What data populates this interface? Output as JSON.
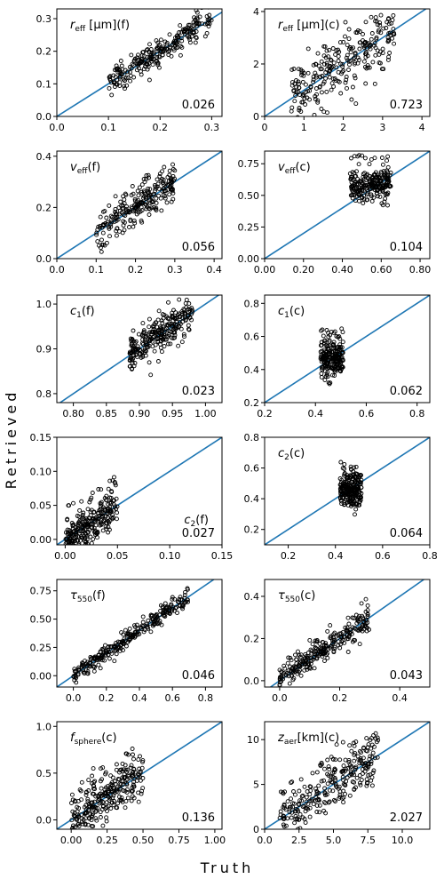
{
  "figure": {
    "ylabel": "Retrieved",
    "xlabel": "Truth",
    "colors": {
      "one_to_one": "#1f77b4",
      "marker": "#000000",
      "axes": "#000000"
    }
  },
  "chart_data": [
    {
      "type": "scatter",
      "title_main": "r",
      "title_sub": "eff",
      "title_rest": " [μm](f)",
      "rmse": "0.026",
      "xlim": [
        0,
        0.32
      ],
      "ylim": [
        0,
        0.33
      ],
      "xticks": [
        0.0,
        0.1,
        0.2,
        0.3
      ],
      "yticks": [
        0.0,
        0.1,
        0.2,
        0.3
      ],
      "dec": 1,
      "cloud": {
        "truth_range": [
          0.1,
          0.3
        ],
        "spread": 0.02,
        "outlier_frac": 0.08,
        "outlier_spread": 0.05,
        "n": 260
      }
    },
    {
      "type": "scatter",
      "title_main": "r",
      "title_sub": "eff",
      "title_rest": " [μm](c)",
      "rmse": "0.723",
      "xlim": [
        0,
        4.2
      ],
      "ylim": [
        0,
        4.1
      ],
      "xticks": [
        0,
        1,
        2,
        3,
        4
      ],
      "yticks": [
        0,
        2,
        4
      ],
      "dec": 0,
      "cloud": {
        "truth_range": [
          0.65,
          3.3
        ],
        "spread": 0.55,
        "outlier_frac": 0.1,
        "outlier_spread": 1.0,
        "n": 260
      }
    },
    {
      "type": "scatter",
      "title_main": "v",
      "title_sub": "eff",
      "title_rest": "(f)",
      "rmse": "0.056",
      "xlim": [
        0,
        0.42
      ],
      "ylim": [
        0,
        0.42
      ],
      "xticks": [
        0.0,
        0.1,
        0.2,
        0.3,
        0.4
      ],
      "yticks": [
        0.0,
        0.2,
        0.4
      ],
      "dec": 1,
      "cloud": {
        "truth_range": [
          0.1,
          0.3
        ],
        "spread": 0.035,
        "outlier_frac": 0.1,
        "outlier_spread": 0.09,
        "n": 240
      }
    },
    {
      "type": "scatter",
      "title_main": "v",
      "title_sub": "eff",
      "title_rest": "(c)",
      "rmse": "0.104",
      "xlim": [
        0,
        0.85
      ],
      "ylim": [
        0,
        0.85
      ],
      "xticks": [
        0.0,
        0.2,
        0.4,
        0.6,
        0.8
      ],
      "yticks": [
        0.0,
        0.25,
        0.5,
        0.75
      ],
      "dec": 2,
      "cloud": {
        "truth_range": [
          0.44,
          0.65
        ],
        "spread": 0.06,
        "outlier_frac": 0.18,
        "outlier_spread": 0.2,
        "n": 230,
        "flat_y": 0.58
      }
    },
    {
      "type": "scatter",
      "title_main": "c",
      "title_sub": "1",
      "title_rest": "(f)",
      "rmse": "0.023",
      "xlim": [
        0.775,
        1.025
      ],
      "ylim": [
        0.78,
        1.02
      ],
      "xticks": [
        0.8,
        0.85,
        0.9,
        0.95,
        1.0
      ],
      "yticks": [
        0.8,
        0.9,
        1.0
      ],
      "dec": 2,
      "ydec": 1,
      "cloud": {
        "truth_range": [
          0.885,
          0.98
        ],
        "spread": 0.02,
        "outlier_frac": 0.1,
        "outlier_spread": 0.05,
        "n": 260
      }
    },
    {
      "type": "scatter",
      "title_main": "c",
      "title_sub": "1",
      "title_rest": "(c)",
      "rmse": "0.062",
      "xlim": [
        0.2,
        0.85
      ],
      "ylim": [
        0.2,
        0.85
      ],
      "xticks": [
        0.2,
        0.4,
        0.6,
        0.8
      ],
      "yticks": [
        0.2,
        0.4,
        0.6,
        0.8
      ],
      "dec": 1,
      "cloud": {
        "truth_range": [
          0.42,
          0.51
        ],
        "spread": 0.05,
        "outlier_frac": 0.15,
        "outlier_spread": 0.15,
        "n": 220,
        "flat_y": 0.47
      }
    },
    {
      "type": "scatter",
      "title_main": "c",
      "title_sub": "2",
      "title_rest": "(f)",
      "rmse": "0.027",
      "xlim": [
        -0.008,
        0.15
      ],
      "ylim": [
        -0.008,
        0.15
      ],
      "xticks": [
        0.0,
        0.05,
        0.1,
        0.15
      ],
      "yticks": [
        0.0,
        0.05,
        0.1,
        0.15
      ],
      "dec": 2,
      "title_at_right": true,
      "cloud": {
        "truth_range": [
          0.0,
          0.05
        ],
        "spread": 0.012,
        "outlier_frac": 0.2,
        "outlier_spread": 0.04,
        "n": 270
      }
    },
    {
      "type": "scatter",
      "title_main": "c",
      "title_sub": "2",
      "title_rest": "(c)",
      "rmse": "0.064",
      "xlim": [
        0.1,
        0.8
      ],
      "ylim": [
        0.1,
        0.8
      ],
      "xticks": [
        0.2,
        0.4,
        0.6,
        0.8
      ],
      "yticks": [
        0.2,
        0.4,
        0.6,
        0.8
      ],
      "dec": 1,
      "cloud": {
        "truth_range": [
          0.42,
          0.51
        ],
        "spread": 0.06,
        "outlier_frac": 0.12,
        "outlier_spread": 0.14,
        "n": 220,
        "flat_y": 0.46
      }
    },
    {
      "type": "scatter",
      "title_main": "τ",
      "title_sub": "550",
      "title_rest": "(f)",
      "rmse": "0.046",
      "xlim": [
        -0.1,
        0.9
      ],
      "ylim": [
        -0.1,
        0.85
      ],
      "xticks": [
        0.0,
        0.2,
        0.4,
        0.6,
        0.8
      ],
      "yticks": [
        0.0,
        0.25,
        0.5,
        0.75
      ],
      "dec": 1,
      "ydec": 2,
      "cloud": {
        "truth_range": [
          0.0,
          0.7
        ],
        "spread": 0.035,
        "outlier_frac": 0.05,
        "outlier_spread": 0.08,
        "n": 280
      }
    },
    {
      "type": "scatter",
      "title_main": "τ",
      "title_sub": "550",
      "title_rest": "(c)",
      "rmse": "0.043",
      "xlim": [
        -0.05,
        0.5
      ],
      "ylim": [
        -0.03,
        0.48
      ],
      "xticks": [
        0.0,
        0.2,
        0.4
      ],
      "yticks": [
        0.0,
        0.2,
        0.4
      ],
      "dec": 1,
      "cloud": {
        "truth_range": [
          0.0,
          0.3
        ],
        "spread": 0.03,
        "outlier_frac": 0.1,
        "outlier_spread": 0.08,
        "n": 270
      }
    },
    {
      "type": "scatter",
      "title_main": "f",
      "title_sub": "sphere",
      "title_rest": "(c)",
      "rmse": "0.136",
      "xlim": [
        -0.1,
        1.05
      ],
      "ylim": [
        -0.1,
        1.05
      ],
      "xticks": [
        0.0,
        0.25,
        0.5,
        0.75,
        1.0
      ],
      "yticks": [
        0.0,
        0.5,
        1.0
      ],
      "dec": 2,
      "ydec": 1,
      "cloud": {
        "truth_range": [
          0.0,
          0.5
        ],
        "spread": 0.12,
        "outlier_frac": 0.15,
        "outlier_spread": 0.3,
        "n": 280
      }
    },
    {
      "type": "scatter",
      "title_main": "z",
      "title_sub": "aer",
      "title_rest": "[km](c)",
      "rmse": "2.027",
      "xlim": [
        0,
        12
      ],
      "ylim": [
        0,
        12
      ],
      "xticks": [
        0.0,
        2.5,
        5.0,
        7.5,
        10.0
      ],
      "yticks": [
        0,
        5,
        10
      ],
      "dec": 1,
      "ydec": 0,
      "cloud": {
        "truth_range": [
          1.0,
          8.3
        ],
        "spread": 1.4,
        "outlier_frac": 0.15,
        "outlier_spread": 2.8,
        "n": 280
      }
    }
  ]
}
